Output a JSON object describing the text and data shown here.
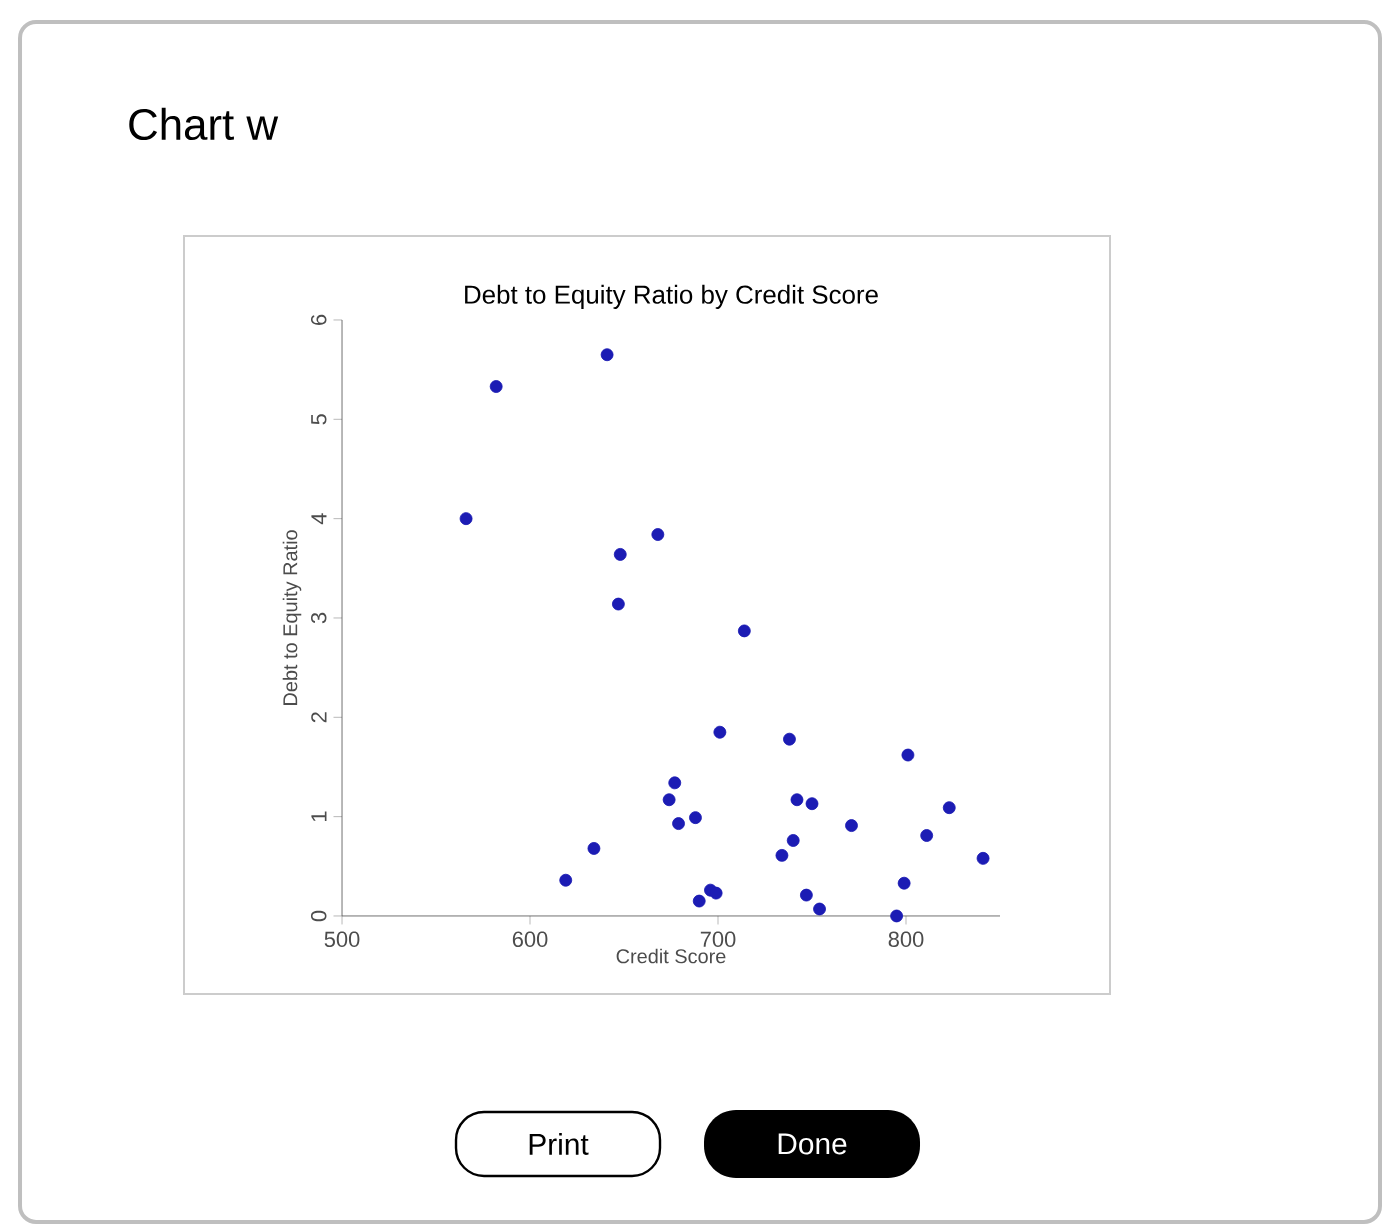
{
  "chart_data": {
    "type": "scatter",
    "title": "Debt to Equity Ratio by Credit Score",
    "xlabel": "Credit Score",
    "ylabel": "Debt to Equity Ratio",
    "series": [
      {
        "color": "#1c1cb4",
        "x": [
          566,
          582,
          641,
          668,
          648,
          647,
          714,
          701,
          677,
          674,
          688,
          679,
          634,
          619,
          690,
          696,
          699,
          738,
          742,
          750,
          740,
          734,
          747,
          754,
          771,
          795,
          799,
          801,
          811,
          823,
          841
        ],
        "values": [
          4.0,
          5.33,
          5.65,
          3.84,
          3.64,
          3.14,
          2.87,
          1.85,
          1.34,
          1.17,
          0.99,
          0.93,
          0.68,
          0.36,
          0.15,
          0.26,
          0.23,
          1.78,
          1.17,
          1.13,
          0.76,
          0.61,
          0.21,
          0.07,
          0.91,
          0.0,
          0.33,
          1.62,
          0.81,
          1.09,
          0.58
        ]
      }
    ],
    "xlim": [
      500,
      850
    ],
    "ylim": [
      0,
      6
    ],
    "xticks": [
      500,
      600,
      700,
      800
    ],
    "yticks": [
      0,
      1,
      2,
      3,
      4,
      5,
      6
    ],
    "grid": false,
    "annotations": [
      "Chart w",
      "Print",
      "Done"
    ]
  }
}
